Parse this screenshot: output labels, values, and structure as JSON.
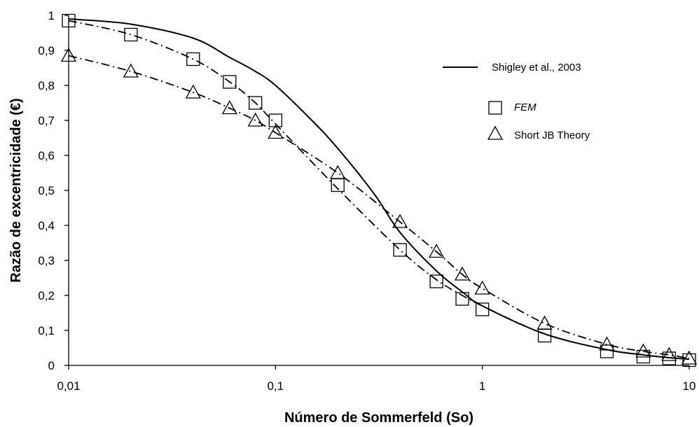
{
  "chart_data": {
    "type": "scatter",
    "xlabel": "Número de Sommerfeld (So)",
    "ylabel": "Razão de excentricidade (€)",
    "xscale": "log",
    "xlim": [
      0.01,
      10
    ],
    "ylim": [
      0,
      1
    ],
    "x_ticks": [
      0.01,
      0.1,
      1,
      10
    ],
    "x_tick_labels": [
      "0,01",
      "0,1",
      "1",
      "10"
    ],
    "y_ticks": [
      0,
      0.1,
      0.2,
      0.3,
      0.4,
      0.5,
      0.6,
      0.7,
      0.8,
      0.9,
      1
    ],
    "y_tick_labels": [
      "0",
      "0,1",
      "0,2",
      "0,3",
      "0,4",
      "0,5",
      "0,6",
      "0,7",
      "0,8",
      "0,9",
      "1"
    ],
    "grid": false,
    "legend_position": "top-right",
    "series": [
      {
        "name": "Shigley et al., 2003",
        "style": "solid-line",
        "color": "#000000",
        "points": [
          [
            0.01,
            0.99
          ],
          [
            0.02,
            0.975
          ],
          [
            0.04,
            0.935
          ],
          [
            0.06,
            0.88
          ],
          [
            0.08,
            0.84
          ],
          [
            0.1,
            0.8
          ],
          [
            0.15,
            0.7
          ],
          [
            0.2,
            0.62
          ],
          [
            0.3,
            0.49
          ],
          [
            0.4,
            0.38
          ],
          [
            0.6,
            0.27
          ],
          [
            0.8,
            0.21
          ],
          [
            1,
            0.17
          ],
          [
            2,
            0.09
          ],
          [
            4,
            0.045
          ],
          [
            6,
            0.03
          ],
          [
            8,
            0.022
          ],
          [
            10,
            0.018
          ]
        ]
      },
      {
        "name": "FEM",
        "style": "square-markers",
        "color": "#000000",
        "points": [
          [
            0.01,
            0.985
          ],
          [
            0.02,
            0.945
          ],
          [
            0.04,
            0.875
          ],
          [
            0.06,
            0.81
          ],
          [
            0.08,
            0.75
          ],
          [
            0.1,
            0.7
          ],
          [
            0.2,
            0.515
          ],
          [
            0.4,
            0.33
          ],
          [
            0.6,
            0.24
          ],
          [
            0.8,
            0.19
          ],
          [
            1,
            0.16
          ],
          [
            2,
            0.085
          ],
          [
            4,
            0.04
          ],
          [
            6,
            0.025
          ],
          [
            8,
            0.02
          ],
          [
            10,
            0.015
          ]
        ]
      },
      {
        "name": "Short JB Theory",
        "style": "triangle-markers",
        "color": "#000000",
        "points": [
          [
            0.01,
            0.885
          ],
          [
            0.02,
            0.84
          ],
          [
            0.04,
            0.78
          ],
          [
            0.06,
            0.735
          ],
          [
            0.08,
            0.7
          ],
          [
            0.1,
            0.665
          ],
          [
            0.2,
            0.55
          ],
          [
            0.4,
            0.41
          ],
          [
            0.6,
            0.325
          ],
          [
            0.8,
            0.26
          ],
          [
            1,
            0.22
          ],
          [
            2,
            0.12
          ],
          [
            4,
            0.06
          ],
          [
            6,
            0.04
          ],
          [
            8,
            0.03
          ],
          [
            10,
            0.02
          ]
        ]
      }
    ],
    "fit_lines": [
      {
        "for_series": "FEM",
        "style": "dash-dot",
        "points": [
          [
            0.01,
            0.985
          ],
          [
            0.02,
            0.945
          ],
          [
            0.04,
            0.875
          ],
          [
            0.06,
            0.81
          ],
          [
            0.08,
            0.75
          ],
          [
            0.1,
            0.69
          ],
          [
            0.2,
            0.505
          ],
          [
            0.4,
            0.33
          ],
          [
            0.6,
            0.245
          ],
          [
            0.8,
            0.2
          ],
          [
            1,
            0.17
          ],
          [
            2,
            0.09
          ],
          [
            4,
            0.045
          ],
          [
            6,
            0.03
          ],
          [
            8,
            0.022
          ],
          [
            10,
            0.018
          ]
        ]
      },
      {
        "for_series": "Short JB Theory",
        "style": "dash-dot",
        "points": [
          [
            0.01,
            0.885
          ],
          [
            0.02,
            0.84
          ],
          [
            0.04,
            0.78
          ],
          [
            0.06,
            0.735
          ],
          [
            0.08,
            0.7
          ],
          [
            0.1,
            0.665
          ],
          [
            0.2,
            0.55
          ],
          [
            0.4,
            0.41
          ],
          [
            0.6,
            0.325
          ],
          [
            0.8,
            0.26
          ],
          [
            1,
            0.22
          ],
          [
            2,
            0.12
          ],
          [
            4,
            0.06
          ],
          [
            6,
            0.04
          ],
          [
            8,
            0.03
          ],
          [
            10,
            0.02
          ]
        ]
      }
    ]
  }
}
